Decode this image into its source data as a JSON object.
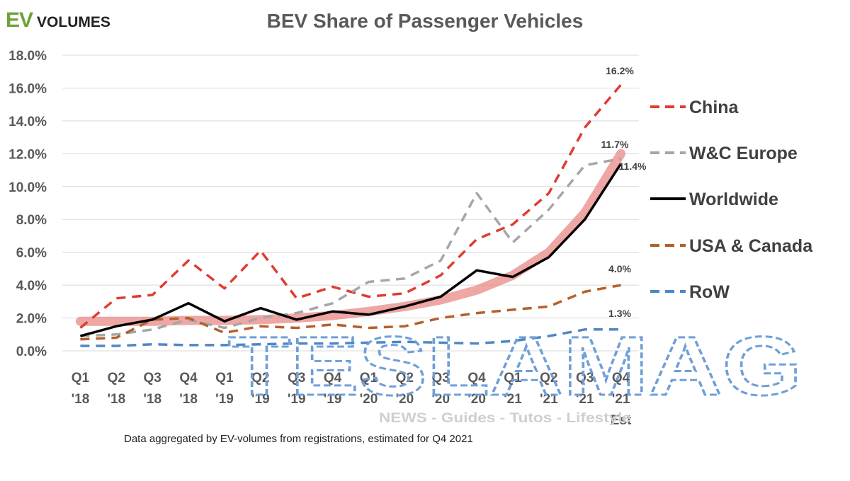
{
  "logo": {
    "ev": "EV",
    "volumes": "VOLUMES"
  },
  "footnote": "Data aggregated by EV-volumes from registrations, estimated for Q4 2021",
  "watermark": {
    "big": "TESLAMAG",
    "small": "NEWS - Guides - Tutos - Lifestyle"
  },
  "chart_data": {
    "type": "line",
    "title": "BEV Share of Passenger Vehicles",
    "xlabel": "",
    "ylabel": "",
    "ylim": [
      0,
      18
    ],
    "yticks": [
      "0.0%",
      "2.0%",
      "4.0%",
      "6.0%",
      "8.0%",
      "10.0%",
      "12.0%",
      "14.0%",
      "16.0%",
      "18.0%"
    ],
    "grid": true,
    "legend_position": "right",
    "categories": [
      [
        "Q1",
        "'18"
      ],
      [
        "Q2",
        "'18"
      ],
      [
        "Q3",
        "'18"
      ],
      [
        "Q4",
        "'18"
      ],
      [
        "Q1",
        "'19"
      ],
      [
        "Q2",
        "'19"
      ],
      [
        "Q3",
        "'19"
      ],
      [
        "Q4",
        "'19"
      ],
      [
        "Q1",
        "'20"
      ],
      [
        "Q2",
        "'20"
      ],
      [
        "Q3",
        "'20"
      ],
      [
        "Q4",
        "'20"
      ],
      [
        "Q1",
        "'21"
      ],
      [
        "Q2",
        "'21"
      ],
      [
        "Q3",
        "'21"
      ],
      [
        "Q4",
        "'21",
        "Est"
      ]
    ],
    "series": [
      {
        "name": "China",
        "color": "#e03c31",
        "style": "dashed",
        "values": [
          1.4,
          3.2,
          3.4,
          5.5,
          3.8,
          6.1,
          3.2,
          3.9,
          3.3,
          3.5,
          4.6,
          6.8,
          7.7,
          9.6,
          13.6,
          16.2
        ],
        "end_label": "16.2%"
      },
      {
        "name": "W&C Europe",
        "color": "#a6a6a6",
        "style": "dashed",
        "values": [
          0.9,
          1.0,
          1.3,
          1.9,
          1.4,
          2.0,
          2.3,
          2.9,
          4.2,
          4.4,
          5.5,
          9.6,
          6.6,
          8.6,
          11.3,
          11.7
        ],
        "end_label": "11.7%"
      },
      {
        "name": "Worldwide",
        "color": "#000000",
        "style": "solid",
        "values": [
          0.9,
          1.5,
          1.9,
          2.9,
          1.8,
          2.6,
          1.9,
          2.4,
          2.2,
          2.7,
          3.3,
          4.9,
          4.5,
          5.7,
          8.0,
          11.4
        ],
        "end_label": "11.4%"
      },
      {
        "name": "USA & Canada",
        "color": "#b5602b",
        "style": "dashed",
        "values": [
          0.7,
          0.8,
          1.9,
          2.0,
          1.1,
          1.5,
          1.4,
          1.6,
          1.4,
          1.5,
          2.0,
          2.3,
          2.5,
          2.7,
          3.6,
          4.0
        ],
        "end_label": "4.0%"
      },
      {
        "name": "RoW",
        "color": "#4f86c6",
        "style": "dashed",
        "values": [
          0.3,
          0.3,
          0.4,
          0.35,
          0.35,
          0.4,
          0.45,
          0.45,
          0.5,
          0.55,
          0.5,
          0.45,
          0.6,
          0.9,
          1.3,
          1.3
        ],
        "end_label": "1.3%"
      }
    ],
    "trend_band": {
      "color": "#e88a85",
      "values": [
        1.8,
        1.8,
        1.8,
        1.85,
        1.85,
        1.9,
        2.0,
        2.15,
        2.4,
        2.7,
        3.1,
        3.7,
        4.6,
        6.0,
        8.4,
        12.0
      ]
    }
  }
}
